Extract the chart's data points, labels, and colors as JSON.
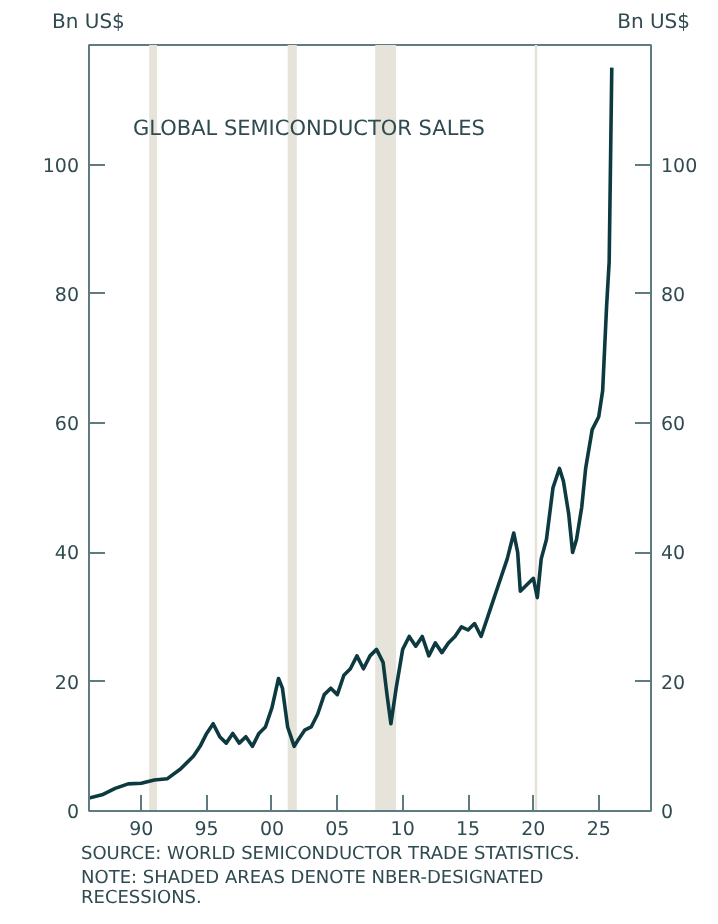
{
  "chart_data": {
    "type": "line",
    "title": "GLOBAL SEMICONDUCTOR SALES",
    "ylabel": "Bn US$",
    "y2label": "Bn US$",
    "annotations": [
      "SOURCE: WORLD SEMICONDUCTOR TRADE STATISTICS.",
      "NOTE: SHADED AREAS DENOTE NBER-DESIGNATED RECESSIONS."
    ],
    "x": [
      1986,
      1987,
      1988,
      1989,
      1990,
      1991,
      1992,
      1993,
      1994,
      1994.5,
      1995,
      1995.5,
      1996,
      1996.5,
      1997,
      1997.5,
      1998,
      1998.5,
      1999,
      1999.5,
      2000,
      2000.5,
      2000.8,
      2001.2,
      2001.7,
      2002,
      2002.5,
      2003,
      2003.5,
      2004,
      2004.5,
      2005,
      2005.5,
      2006,
      2006.5,
      2007,
      2007.5,
      2008,
      2008.5,
      2008.8,
      2009.1,
      2009.5,
      2010,
      2010.5,
      2011,
      2011.5,
      2012,
      2012.5,
      2013,
      2013.5,
      2014,
      2014.5,
      2015,
      2015.5,
      2016,
      2016.5,
      2017,
      2017.5,
      2018,
      2018.5,
      2018.8,
      2019,
      2019.5,
      2020,
      2020.3,
      2020.6,
      2021,
      2021.5,
      2022,
      2022.3,
      2022.7,
      2023,
      2023.3,
      2023.7,
      2024,
      2024.5,
      2025,
      2025.3,
      2025.6,
      2025.8,
      2026
    ],
    "series": [
      {
        "color": "#0d3a40",
        "values": [
          2.0,
          2.5,
          3.5,
          4.2,
          4.3,
          4.8,
          5.0,
          6.5,
          8.5,
          10,
          12,
          13.5,
          11.5,
          10.5,
          12,
          10.5,
          11.5,
          10,
          12,
          13,
          16,
          20.5,
          19,
          13,
          10,
          11,
          12.5,
          13,
          15,
          18,
          19,
          18,
          21,
          22,
          24,
          22,
          24,
          25,
          23,
          18,
          13.5,
          19,
          25,
          27,
          25.5,
          27,
          24,
          26,
          24.5,
          26,
          27,
          28.5,
          28,
          29,
          27,
          30,
          33,
          36,
          39,
          43,
          40,
          34,
          35,
          36,
          33,
          39,
          42,
          50,
          53,
          51,
          46,
          40,
          42,
          47,
          53,
          59,
          61,
          65,
          78,
          85,
          115
        ]
      }
    ],
    "xlim": [
      1986,
      2029
    ],
    "ylim": [
      0,
      118.5
    ],
    "xticks": [
      {
        "value": 1990,
        "label": "90"
      },
      {
        "value": 1995,
        "label": "95"
      },
      {
        "value": 2000,
        "label": "00"
      },
      {
        "value": 2005,
        "label": "05"
      },
      {
        "value": 2010,
        "label": "10"
      },
      {
        "value": 2015,
        "label": "15"
      },
      {
        "value": 2020,
        "label": "20"
      },
      {
        "value": 2025,
        "label": "25"
      }
    ],
    "yticks": [
      0,
      20,
      40,
      60,
      80,
      100
    ],
    "y2lim": [
      0,
      118.5
    ],
    "y2ticks": [
      0,
      20,
      40,
      60,
      80,
      100
    ],
    "bands": [
      {
        "axis": "x",
        "from": 1990.6,
        "to": 1991.2,
        "color": "#e6e4da"
      },
      {
        "axis": "x",
        "from": 2001.2,
        "to": 2001.9,
        "color": "#e6e4da"
      },
      {
        "axis": "x",
        "from": 2007.9,
        "to": 2009.5,
        "color": "#e6e4da"
      },
      {
        "axis": "x",
        "from": 2020.1,
        "to": 2020.3,
        "color": "#e6e4da"
      }
    ],
    "grid": false
  }
}
